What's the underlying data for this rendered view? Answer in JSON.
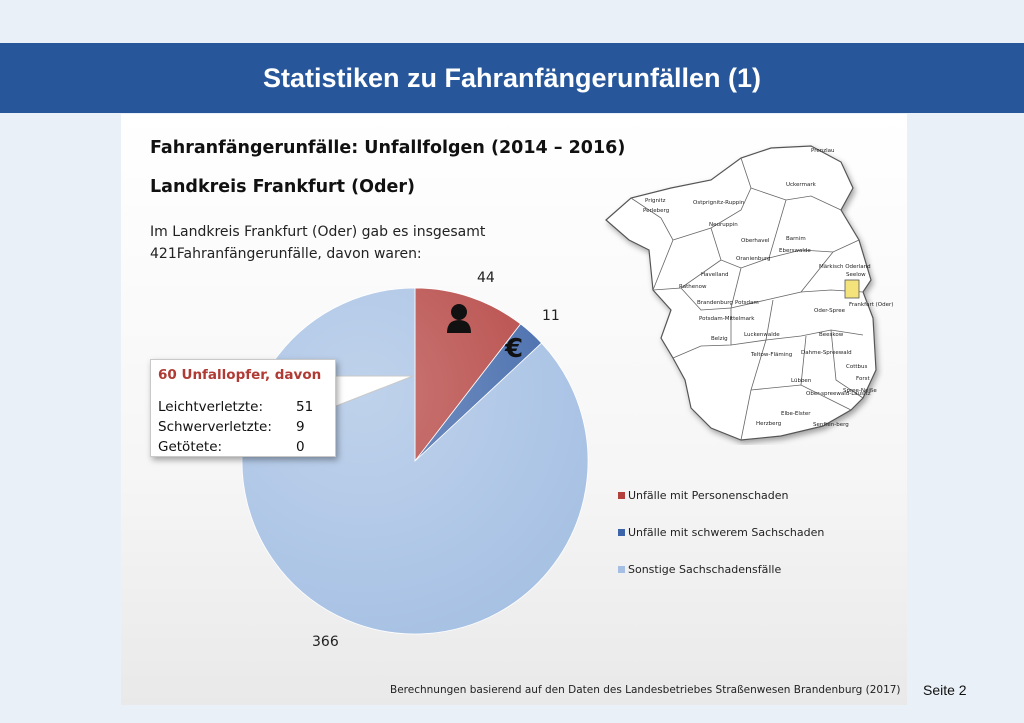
{
  "slide": {
    "title": "Statistiken zu Fahranfängerunfällen (1)",
    "page_label": "Seite 2"
  },
  "content": {
    "heading": "Fahranfängerunfälle: Unfallfolgen (2014 – 2016)",
    "subheading": "Landkreis Frankfurt (Oder)",
    "intro_line1": "Im Landkreis Frankfurt (Oder) gab es insgesamt",
    "intro_line2": "421Fahranfängerunfälle, davon waren:",
    "footnote": "Berechnungen basierend auf den Daten des Landesbetriebes Straßenwesen Brandenburg (2017)"
  },
  "callout": {
    "title": "60 Unfallopfer, davon",
    "rows": [
      {
        "label": "Leichtverletzte:",
        "value": "51"
      },
      {
        "label": "Schwerverletzte:",
        "value": "9"
      },
      {
        "label": "Getötete:",
        "value": "0"
      }
    ]
  },
  "icons": {
    "person": "person-icon",
    "euro": "euro-icon",
    "map": "brandenburg-district-map"
  },
  "map": {
    "highlight_color": "#f4e27a",
    "labels": [
      "Prenzlau",
      "Prignitz",
      "Perleberg",
      "Ostprignitz-Ruppin",
      "Neuruppin",
      "Uckermark",
      "Oberhavel",
      "Barnim",
      "Oranienburg",
      "Eberswalde",
      "Märkisch Oderland",
      "Havelland",
      "Rathenow",
      "Seelow",
      "Brandenburg",
      "Potsdam",
      "Frankfurt (Oder)",
      "Potsdam-Mittelmark",
      "Oder-Spree",
      "Belzig",
      "Luckenwalde",
      "Teltow-Fläming",
      "Dahme-Spreewald",
      "Beeskow",
      "Lübben",
      "Ober-spreewald-Lausitz",
      "Cottbus",
      "Forst",
      "Spree-Neiße",
      "Elbe-Elster",
      "Herzberg",
      "Senften-berg"
    ]
  },
  "chart_data": {
    "type": "pie",
    "title": "",
    "start_angle_deg": 0,
    "direction": "clockwise",
    "slices": [
      {
        "name": "Unfälle mit Personenschaden",
        "value": 44,
        "color": "#b3403d"
      },
      {
        "name": "Unfälle mit schwerem Sachschaden",
        "value": 11,
        "color": "#3c64a8"
      },
      {
        "name": "Sonstige Sachschadensfälle",
        "value": 366,
        "color": "#a4bfe3"
      }
    ],
    "data_labels": [
      "44",
      "11",
      "366"
    ],
    "legend_position": "right"
  }
}
